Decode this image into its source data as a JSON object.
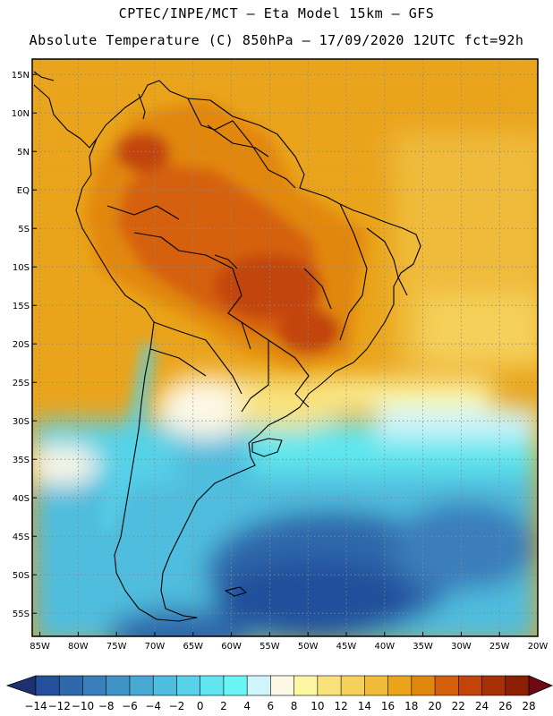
{
  "header": {
    "title_line1": "CPTEC/INPE/MCT –  Eta Model 15km – GFS",
    "title_line2": "Absolute Temperature (C) 850hPa – 17/09/2020 12UTC fct=92h"
  },
  "map": {
    "lat_range": [
      -58,
      17
    ],
    "lon_range": [
      -86,
      -20
    ],
    "lat_labels": [
      "15N",
      "10N",
      "5N",
      "EQ",
      "5S",
      "10S",
      "15S",
      "20S",
      "25S",
      "30S",
      "35S",
      "40S",
      "45S",
      "50S",
      "55S"
    ],
    "lat_values": [
      15,
      10,
      5,
      0,
      -5,
      -10,
      -15,
      -20,
      -25,
      -30,
      -35,
      -40,
      -45,
      -50,
      -55
    ],
    "lon_labels": [
      "85W",
      "80W",
      "75W",
      "70W",
      "65W",
      "60W",
      "55W",
      "50W",
      "45W",
      "40W",
      "35W",
      "30W",
      "25W",
      "20W"
    ],
    "lon_values": [
      -85,
      -80,
      -75,
      -70,
      -65,
      -60,
      -55,
      -50,
      -45,
      -40,
      -35,
      -30,
      -25,
      -20
    ]
  },
  "colorbar": {
    "labels": [
      "-14",
      "-12",
      "-10",
      "-8",
      "-6",
      "-4",
      "-2",
      "0",
      "2",
      "4",
      "6",
      "8",
      "10",
      "12",
      "14",
      "16",
      "18",
      "20",
      "22",
      "24",
      "26",
      "28"
    ],
    "colors": [
      "#1e3c8c",
      "#24509b",
      "#2e68ab",
      "#3a7ebb",
      "#3f93c5",
      "#47a8d2",
      "#4fbdde",
      "#57d2e8",
      "#5fe6ee",
      "#6af5f5",
      "#cff4fb",
      "#fdf8e6",
      "#fdf6a2",
      "#f9e27a",
      "#f5d05a",
      "#f0bb3a",
      "#eaa41b",
      "#e2870d",
      "#d5600b",
      "#c24409",
      "#a83006",
      "#8c1f04",
      "#701503"
    ],
    "under_color": "#1e3070",
    "over_color": "#6e0a16"
  }
}
